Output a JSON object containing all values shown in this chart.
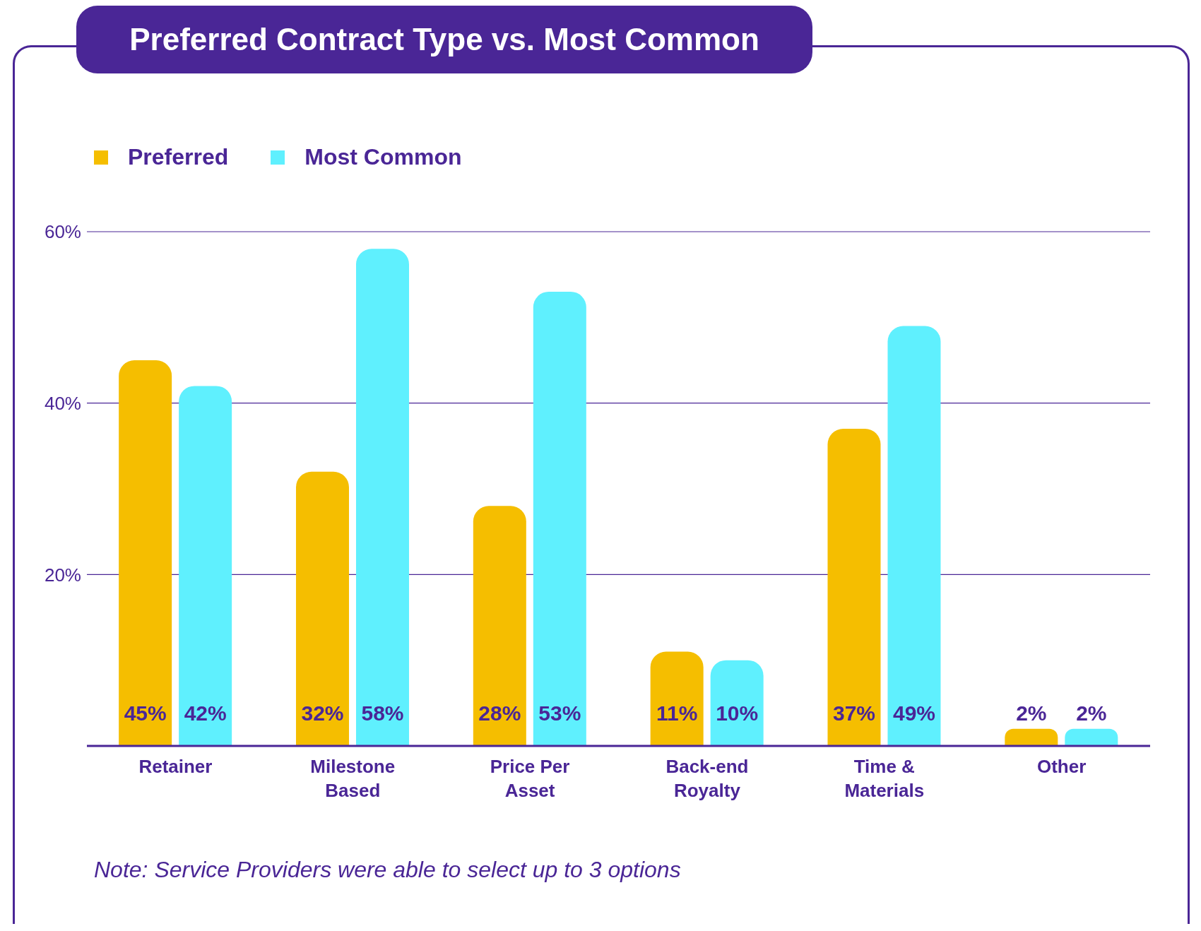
{
  "chart_data": {
    "type": "bar",
    "title": "Preferred Contract Type vs. Most Common",
    "categories": [
      "Retainer",
      "Milestone Based",
      "Price Per Asset",
      "Back-end Royalty",
      "Time & Materials",
      "Other"
    ],
    "series": [
      {
        "name": "Preferred",
        "color": "#f5be00",
        "values": [
          45,
          32,
          28,
          11,
          37,
          2
        ],
        "value_labels": [
          "45%",
          "32%",
          "28%",
          "11%",
          "37%",
          "2%"
        ]
      },
      {
        "name": "Most Common",
        "color": "#5ff0fe",
        "values": [
          42,
          58,
          53,
          10,
          49,
          2
        ],
        "value_labels": [
          "42%",
          "58%",
          "53%",
          "10%",
          "49%",
          "2%"
        ]
      }
    ],
    "ylim": [
      0,
      60
    ],
    "yticks": [
      {
        "value": 20,
        "label": "20%"
      },
      {
        "value": 40,
        "label": "40%"
      },
      {
        "value": 60,
        "label": "60%"
      }
    ],
    "grid": "y",
    "legend": "top left",
    "annotations": [
      "Note: Service Providers were able to select up to 3 options"
    ]
  }
}
